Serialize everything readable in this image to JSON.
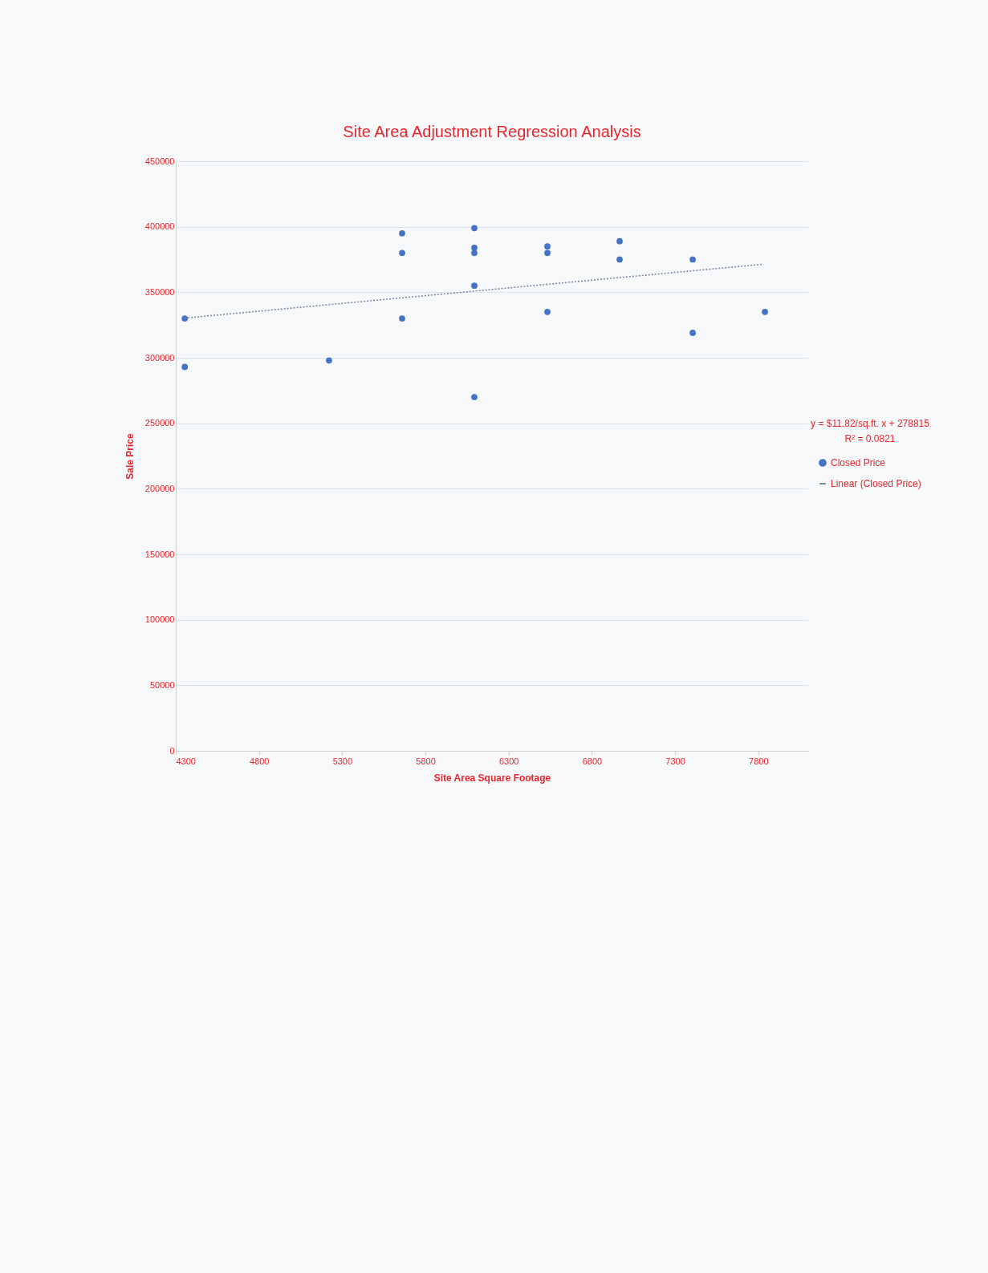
{
  "chart_data": {
    "type": "scatter",
    "title": "Site Area Adjustment Regression Analysis",
    "xlabel": "Site Area Square Footage",
    "ylabel": "Sale Price",
    "annotations": [
      "y = $11.82/sq.ft. x + 278815",
      "R² = 0.0821"
    ],
    "series": [
      {
        "name": "Closed Price",
        "color": "#4472c4",
        "marker": "circle",
        "x": [
          4354,
          4354,
          5221,
          5660,
          5660,
          5660,
          6094,
          6094,
          6094,
          6094,
          6094,
          6533,
          6533,
          6533,
          6967,
          6967,
          7406,
          7406,
          7840
        ],
        "values": [
          330000,
          293000,
          298000,
          395000,
          380000,
          330000,
          399000,
          384000,
          380000,
          355000,
          270000,
          385000,
          380000,
          335000,
          389000,
          375000,
          375000,
          319000,
          335000
        ]
      },
      {
        "name": "Linear (Closed Price)",
        "type": "line",
        "color": "#7a8aa6",
        "line_style": "dotted",
        "x": [
          4354,
          7830
        ],
        "values": [
          330300,
          371400
        ]
      }
    ],
    "xlim": [
      4300,
      8100
    ],
    "xticks": [
      4300,
      4800,
      5300,
      5800,
      6300,
      6800,
      7300,
      7800
    ],
    "ylim": [
      0,
      450000
    ],
    "yticks": [
      0,
      50000,
      100000,
      150000,
      200000,
      250000,
      300000,
      350000,
      400000,
      450000
    ],
    "grid": "y",
    "legend": "right"
  }
}
